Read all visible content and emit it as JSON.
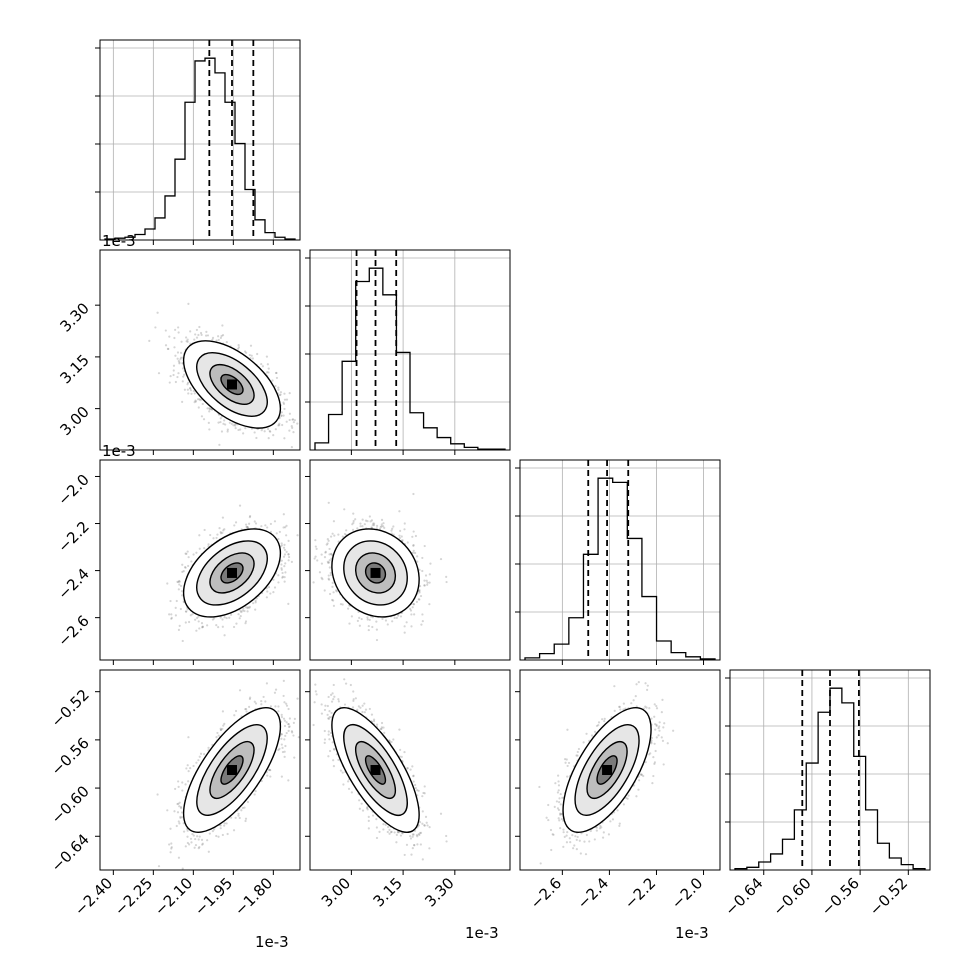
{
  "chart_data": {
    "type": "corner",
    "x_offset_label": "1e-3",
    "parameters": [
      {
        "range": [
          -2.45,
          -1.7
        ],
        "offset": "1e-3",
        "ticks": [
          "−2.40",
          "−2.25",
          "−2.10",
          "−1.95",
          "−1.80"
        ],
        "tick_values": [
          -2.4,
          -2.25,
          -2.1,
          -1.95,
          -1.8
        ],
        "quantiles": [
          -2.04,
          -1.955,
          -1.875
        ]
      },
      {
        "range": [
          2.88,
          3.46
        ],
        "offset": "1e-3",
        "ticks": [
          "3.00",
          "3.15",
          "3.30"
        ],
        "tick_values": [
          3.0,
          3.15,
          3.3
        ],
        "quantiles": [
          3.015,
          3.07,
          3.13
        ]
      },
      {
        "range": [
          -2.78,
          -1.93
        ],
        "offset": "1e-3",
        "ticks": [
          "−2.6",
          "−2.4",
          "−2.2",
          "−2.0"
        ],
        "tick_values": [
          -2.6,
          -2.4,
          -2.2,
          -2.0
        ],
        "quantiles": [
          -2.49,
          -2.41,
          -2.32
        ]
      },
      {
        "range": [
          -0.668,
          -0.502
        ],
        "offset": "",
        "ticks": [
          "−0.64",
          "−0.60",
          "−0.56",
          "−0.52"
        ],
        "tick_values": [
          -0.64,
          -0.6,
          -0.56,
          -0.52
        ],
        "quantiles": [
          -0.608,
          -0.585,
          -0.561
        ]
      }
    ],
    "histograms": [
      [
        1,
        2,
        3,
        6,
        12,
        24,
        48,
        88,
        150,
        195,
        198,
        182,
        150,
        105,
        55,
        22,
        8,
        3,
        1
      ],
      [
        8,
        40,
        100,
        190,
        205,
        175,
        110,
        42,
        25,
        14,
        7,
        3,
        1,
        1
      ],
      [
        2,
        6,
        15,
        40,
        100,
        172,
        168,
        115,
        60,
        18,
        7,
        3,
        1
      ],
      [
        1,
        2,
        6,
        12,
        23,
        45,
        80,
        118,
        136,
        125,
        85,
        45,
        20,
        9,
        4,
        1
      ]
    ],
    "correlations": {
      "1-0": -0.55,
      "2-0": 0.45,
      "2-1": -0.15,
      "3-0": 0.7,
      "3-1": -0.72,
      "3-2": 0.65
    }
  }
}
